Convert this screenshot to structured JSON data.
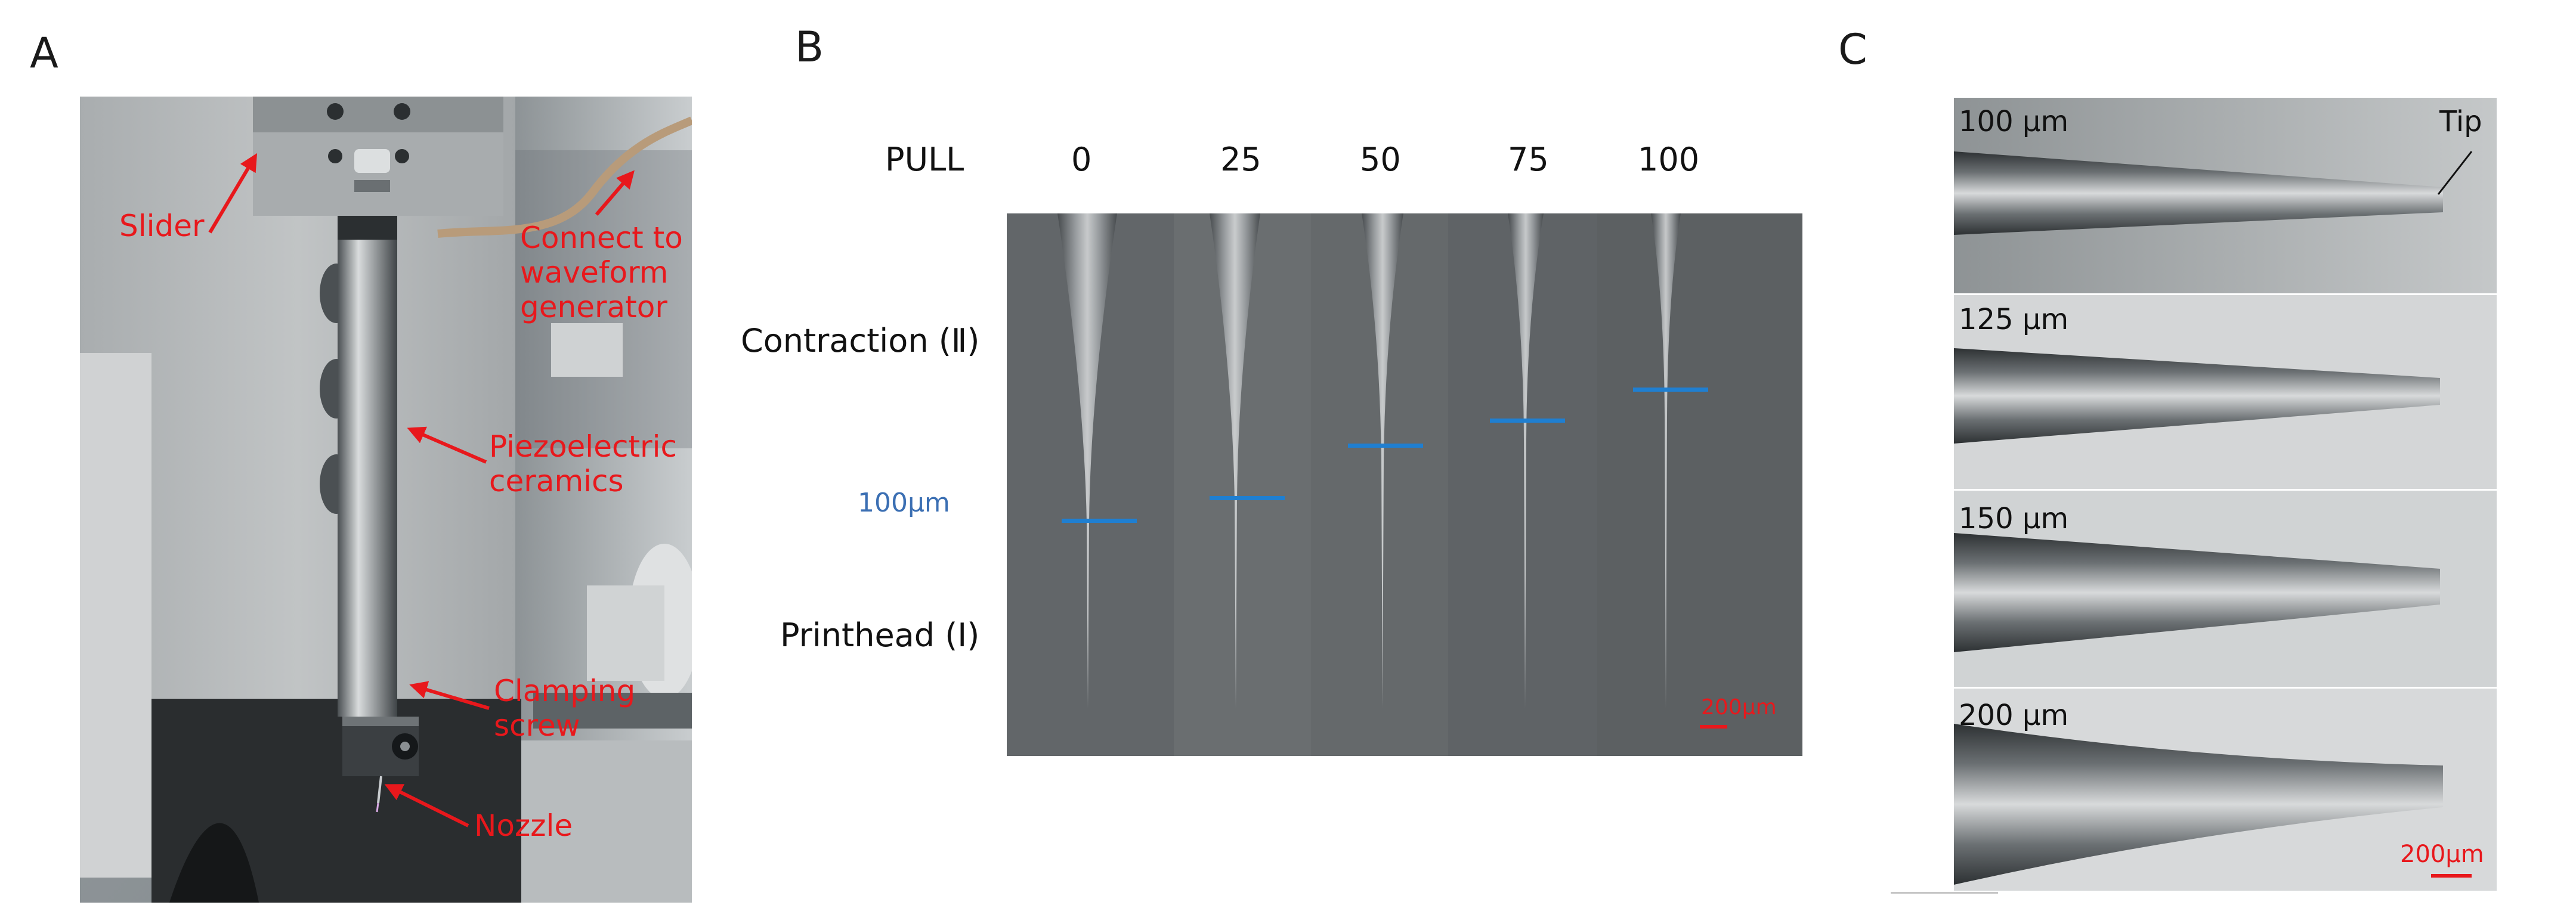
{
  "panels": {
    "a": {
      "letter": "A"
    },
    "b": {
      "letter": "B"
    },
    "c": {
      "letter": "C"
    }
  },
  "panel_a": {
    "labels": {
      "slider": "Slider",
      "connect": "Connect to\nwaveform\ngenerator",
      "piezo": "Piezoelectric\nceramics",
      "clamping": "Clamping\nscrew",
      "nozzle": "Nozzle"
    }
  },
  "panel_b": {
    "pull_header": "PULL",
    "pull_values": [
      "0",
      "25",
      "50",
      "75",
      "100"
    ],
    "contraction_label": "Contraction (Ⅱ)",
    "printhead_label": "Printhead (Ⅰ)",
    "marker_label": "100μm",
    "scale_bar": "200μm",
    "colors": {
      "marker": "#1f7fd1",
      "scale": "#e8181c"
    }
  },
  "panel_c": {
    "rows": [
      {
        "label": "100 μm"
      },
      {
        "label": "125 μm"
      },
      {
        "label": "150 μm"
      },
      {
        "label": "200 μm"
      }
    ],
    "tip_label": "Tip",
    "scale_bar": "200μm"
  }
}
